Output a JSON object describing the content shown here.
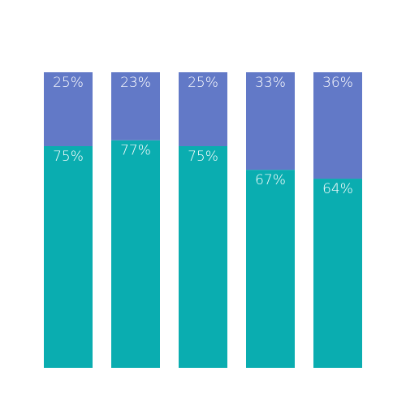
{
  "chart_data": {
    "type": "bar",
    "stacked": true,
    "normalized": true,
    "categories": [
      "",
      "",
      "",
      "",
      ""
    ],
    "series": [
      {
        "values": [
          75,
          77,
          75,
          67,
          64
        ],
        "labels": [
          "75%",
          "77%",
          "75%",
          "67%",
          "64%"
        ],
        "color": "#0aadb0"
      },
      {
        "values": [
          25,
          23,
          25,
          33,
          36
        ],
        "labels": [
          "25%",
          "23%",
          "25%",
          "33%",
          "36%"
        ],
        "color": "#6279c7"
      }
    ],
    "ylim": [
      0,
      100
    ],
    "grid": false,
    "legend": "none",
    "title": "",
    "xlabel": "",
    "ylabel": ""
  }
}
